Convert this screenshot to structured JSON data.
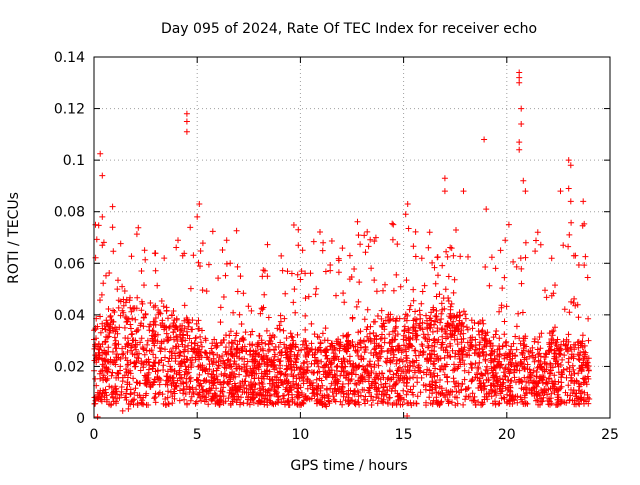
{
  "chart_data": {
    "type": "scatter",
    "title": "Day 095 of 2024, Rate Of TEC Index for receiver echo",
    "xlabel": "GPS time / hours",
    "ylabel": "ROTI / TECUs",
    "xlim": [
      0,
      25
    ],
    "ylim": [
      0,
      0.14
    ],
    "xticks": [
      0,
      5,
      10,
      15,
      20,
      25
    ],
    "xtick_labels": [
      "0",
      "5",
      "10",
      "15",
      "20",
      "25"
    ],
    "yticks": [
      0,
      0.02,
      0.04,
      0.06,
      0.08,
      0.1,
      0.12,
      0.14
    ],
    "ytick_labels": [
      "0",
      "0.02",
      "0.04",
      "0.06",
      "0.08",
      "0.1",
      "0.12",
      "0.14"
    ],
    "grid": true,
    "marker": "+",
    "color": "#ff0000",
    "series": [
      {
        "points": [
          [
            0.3,
            0.1025
          ],
          [
            0.4,
            0.094
          ],
          [
            0.4,
            0.078
          ],
          [
            0.4,
            0.067
          ],
          [
            0.9,
            0.082
          ],
          [
            0.9,
            0.074
          ],
          [
            4.5,
            0.118
          ],
          [
            4.5,
            0.115
          ],
          [
            4.5,
            0.111
          ],
          [
            5.1,
            0.083
          ],
          [
            5.0,
            0.078
          ],
          [
            18.9,
            0.108
          ],
          [
            17.0,
            0.093
          ],
          [
            17.0,
            0.088
          ],
          [
            17.9,
            0.088
          ],
          [
            19.0,
            0.081
          ],
          [
            20.6,
            0.134
          ],
          [
            20.6,
            0.132
          ],
          [
            20.6,
            0.13
          ],
          [
            20.7,
            0.12
          ],
          [
            20.7,
            0.114
          ],
          [
            20.6,
            0.107
          ],
          [
            20.6,
            0.104
          ],
          [
            20.8,
            0.092
          ],
          [
            20.9,
            0.088
          ],
          [
            22.6,
            0.088
          ],
          [
            23.0,
            0.1
          ],
          [
            23.1,
            0.098
          ],
          [
            23.0,
            0.089
          ],
          [
            23.1,
            0.084
          ],
          [
            23.7,
            0.084
          ],
          [
            15.2,
            0.083
          ],
          [
            15.1,
            0.079
          ],
          [
            14.5,
            0.075
          ],
          [
            9.9,
            0.073
          ],
          [
            9.9,
            0.067
          ],
          [
            11.1,
            0.068
          ],
          [
            12.4,
            0.063
          ],
          [
            3.4,
            0.062
          ],
          [
            6.6,
            0.06
          ],
          [
            21.5,
            0.072
          ],
          [
            2.3,
            0.057
          ],
          [
            8.4,
            0.055
          ],
          [
            19.7,
            0.065
          ],
          [
            20.1,
            0.075
          ],
          [
            16.2,
            0.066
          ]
        ],
        "band": {
          "x_range": [
            0,
            24
          ],
          "dense_y_range": [
            0.005,
            0.035
          ],
          "peak_y_approx": 0.06
        }
      }
    ]
  }
}
